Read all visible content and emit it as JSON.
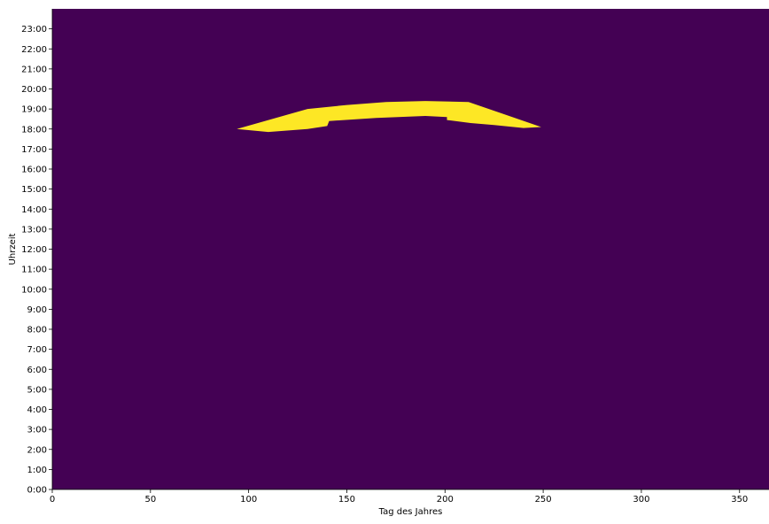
{
  "chart_data": {
    "type": "heatmap",
    "title": "",
    "xlabel": "Tag des Jahres",
    "ylabel": "Uhrzeit",
    "xlim": [
      0,
      365
    ],
    "ylim": [
      0,
      24
    ],
    "x_ticks": [
      0,
      50,
      100,
      150,
      200,
      250,
      300,
      350
    ],
    "x_tick_labels": [
      "0",
      "50",
      "100",
      "150",
      "200",
      "250",
      "300",
      "350"
    ],
    "y_ticks": [
      0,
      1,
      2,
      3,
      4,
      5,
      6,
      7,
      8,
      9,
      10,
      11,
      12,
      13,
      14,
      15,
      16,
      17,
      18,
      19,
      20,
      21,
      22,
      23
    ],
    "y_tick_labels": [
      "0:00",
      "1:00",
      "2:00",
      "3:00",
      "4:00",
      "5:00",
      "6:00",
      "7:00",
      "8:00",
      "9:00",
      "10:00",
      "11:00",
      "12:00",
      "13:00",
      "14:00",
      "15:00",
      "16:00",
      "17:00",
      "18:00",
      "19:00",
      "20:00",
      "21:00",
      "22:00",
      "23:00"
    ],
    "colors": {
      "background": "#440154",
      "highlight": "#fde725"
    },
    "grid": false,
    "highlight_region": {
      "description": "",
      "upper_boundary": [
        {
          "day": 94,
          "hour": 18.0
        },
        {
          "day": 130,
          "hour": 19.0
        },
        {
          "day": 150,
          "hour": 19.2
        },
        {
          "day": 170,
          "hour": 19.35
        },
        {
          "day": 190,
          "hour": 19.4
        },
        {
          "day": 212,
          "hour": 19.35
        },
        {
          "day": 249,
          "hour": 18.1
        }
      ],
      "lower_boundary": [
        {
          "day": 249,
          "hour": 18.1
        },
        {
          "day": 240,
          "hour": 18.05
        },
        {
          "day": 225,
          "hour": 18.2
        },
        {
          "day": 213,
          "hour": 18.3
        },
        {
          "day": 201,
          "hour": 18.45
        },
        {
          "day": 201,
          "hour": 18.6
        },
        {
          "day": 190,
          "hour": 18.65
        },
        {
          "day": 165,
          "hour": 18.55
        },
        {
          "day": 141,
          "hour": 18.4
        },
        {
          "day": 140,
          "hour": 18.15
        },
        {
          "day": 130,
          "hour": 18.0
        },
        {
          "day": 110,
          "hour": 17.85
        },
        {
          "day": 94,
          "hour": 18.0
        }
      ]
    }
  }
}
